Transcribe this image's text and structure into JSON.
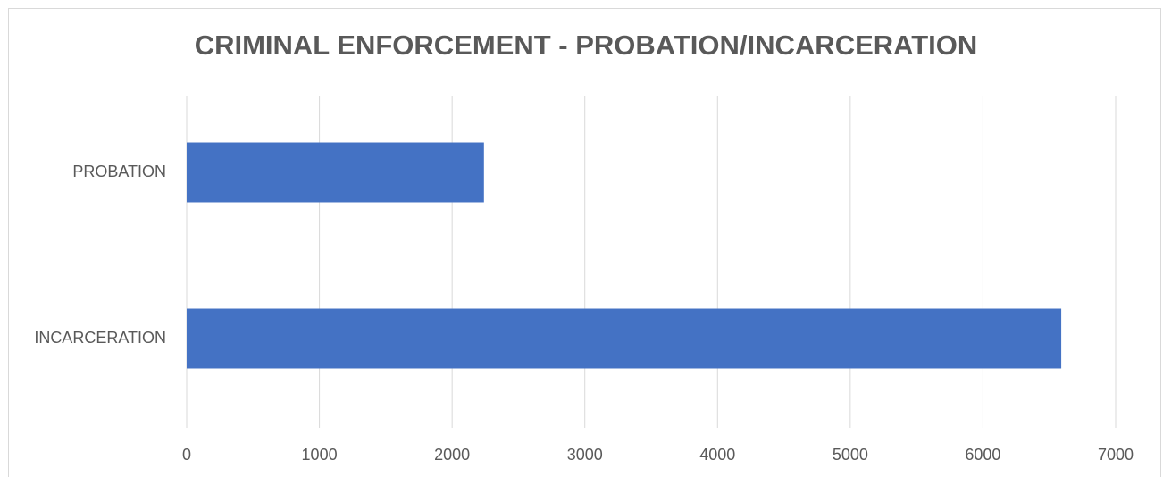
{
  "chart_data": {
    "type": "barh",
    "title": "CRIMINAL ENFORCEMENT - PROBATION/INCARCERATION",
    "categories": [
      "PROBATION",
      "INCARCERATION"
    ],
    "values": [
      2240,
      6590
    ],
    "color": "#4472c4",
    "xlim": [
      0,
      7000
    ],
    "xticks": [
      0,
      1000,
      2000,
      3000,
      4000,
      5000,
      6000,
      7000
    ],
    "grid": true
  }
}
